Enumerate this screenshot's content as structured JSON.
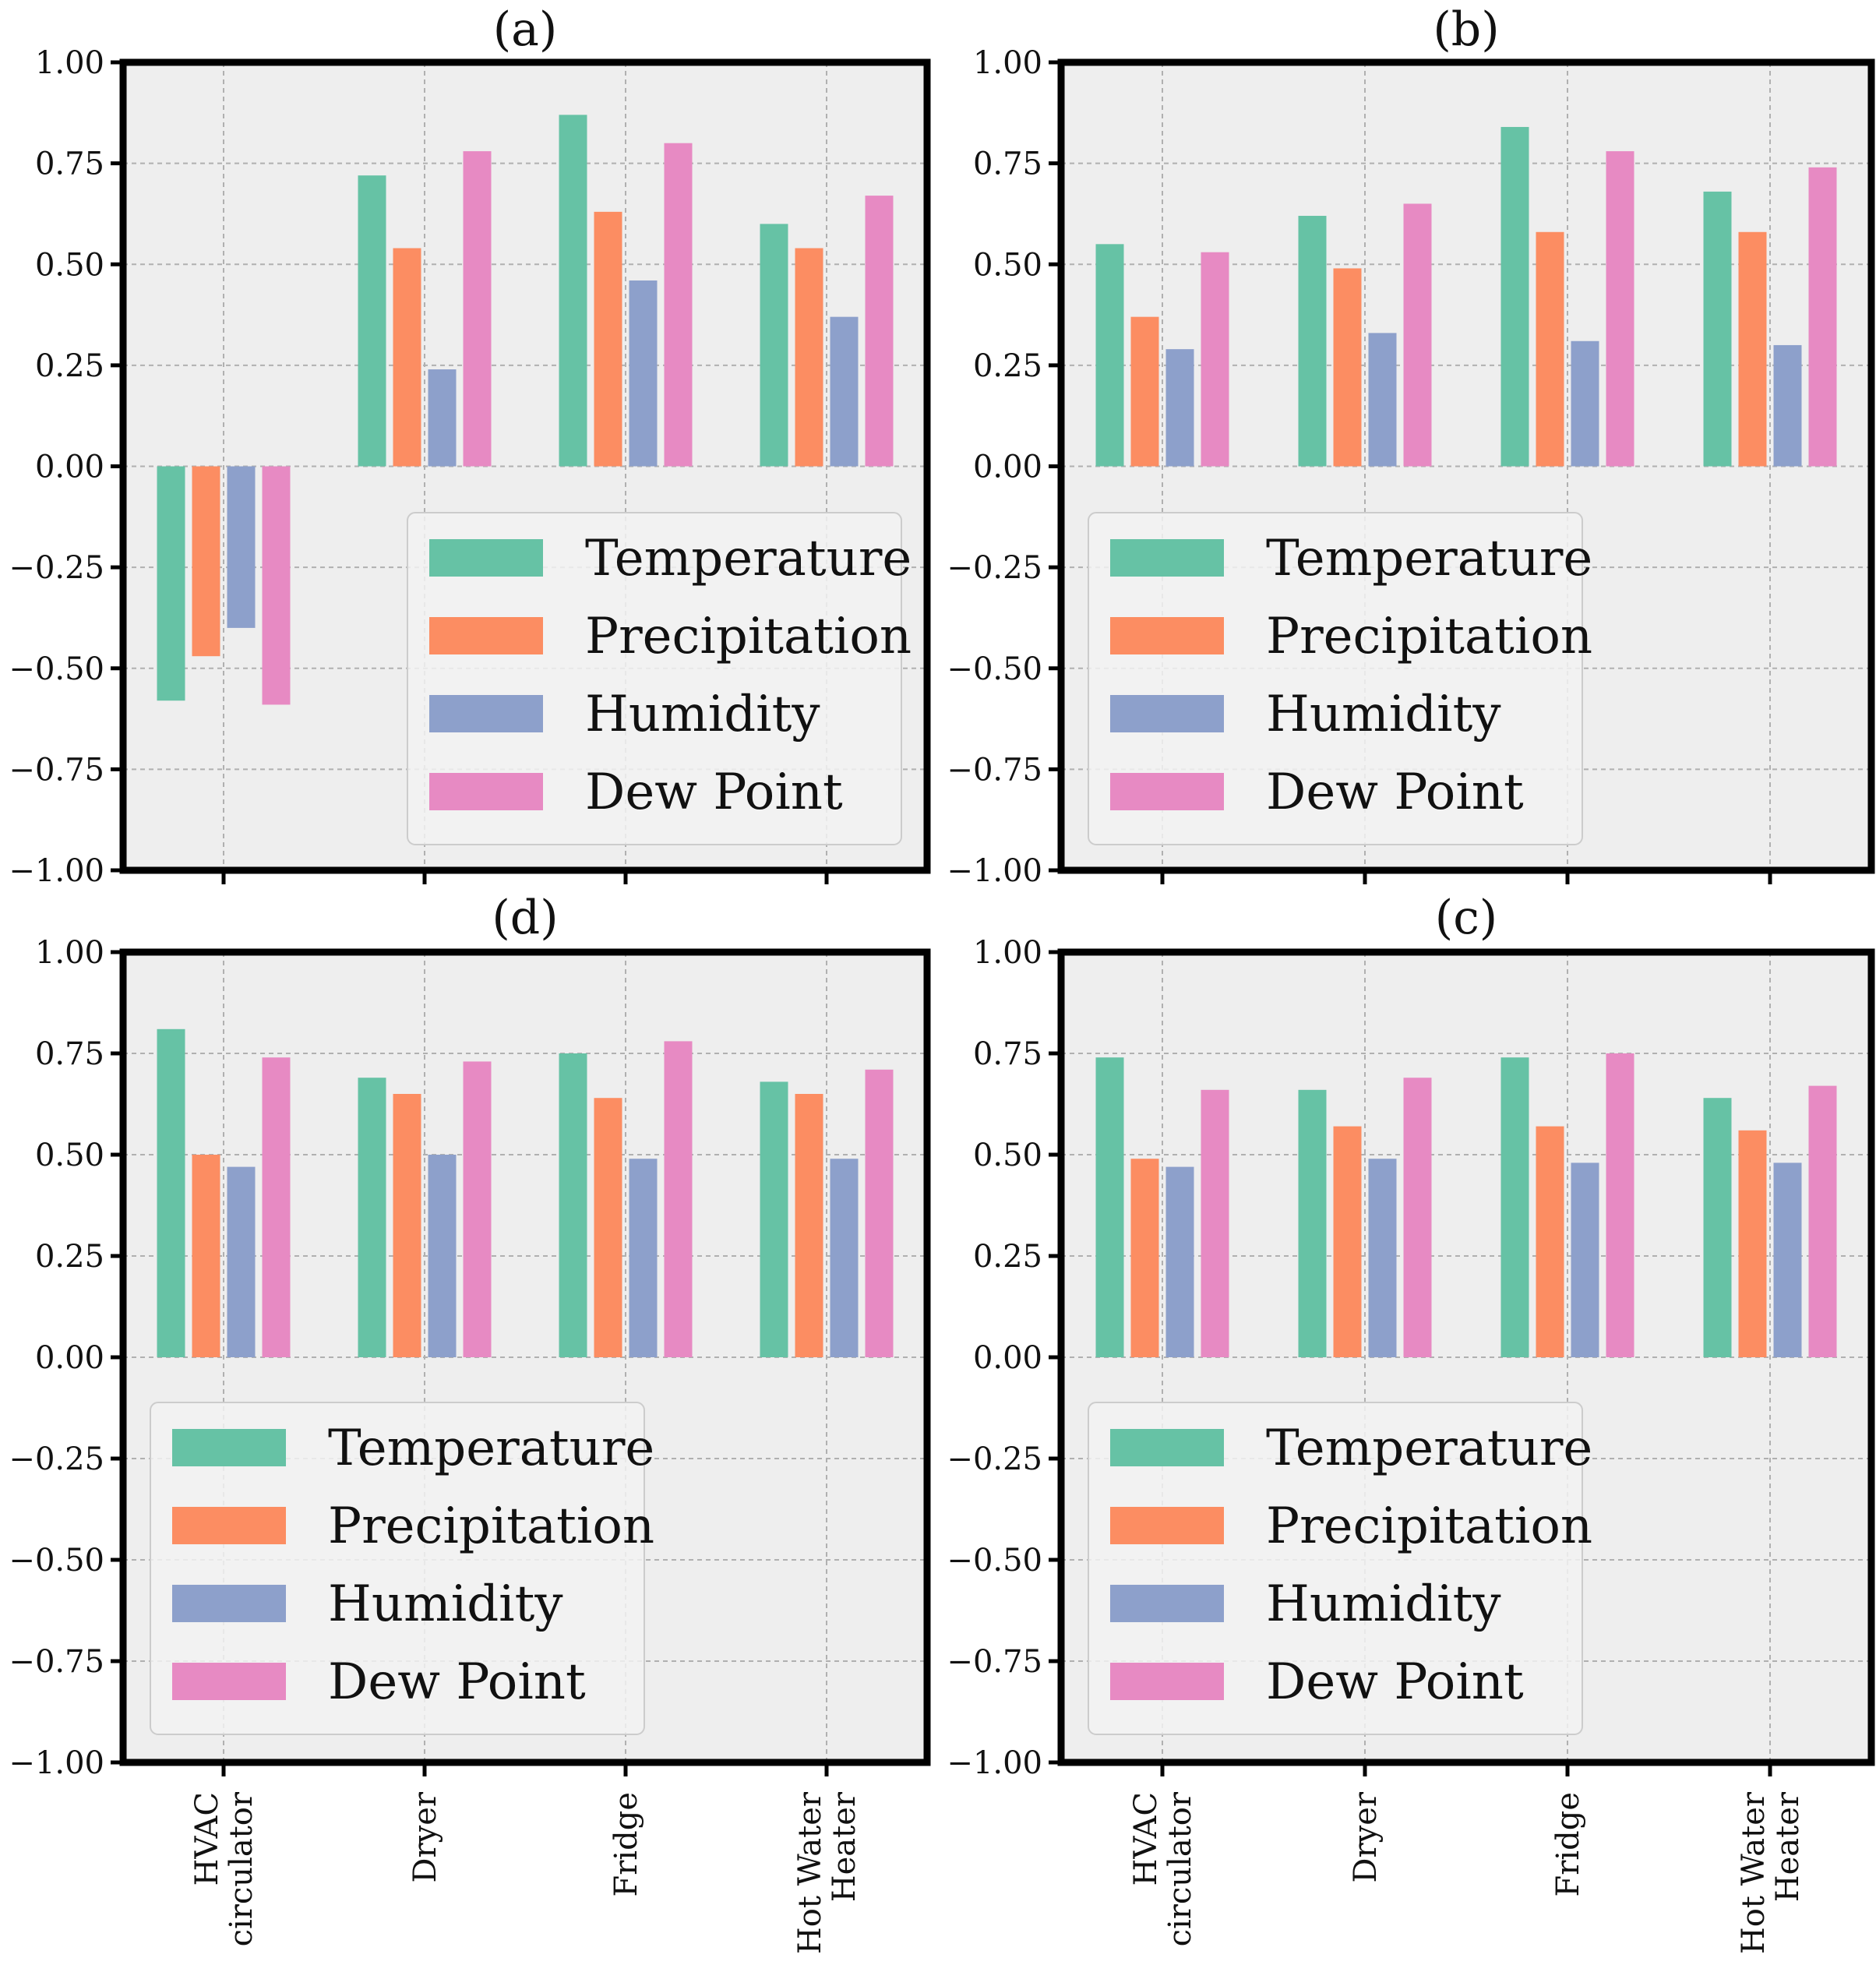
{
  "chart_data": [
    {
      "type": "bar",
      "title": "(a)",
      "categories": [
        "HVAC circulator",
        "Dryer",
        "Fridge",
        "Hot Water Heater"
      ],
      "series": [
        {
          "name": "Temperature",
          "values": [
            -0.58,
            0.72,
            0.87,
            0.6
          ]
        },
        {
          "name": "Precipitation",
          "values": [
            -0.47,
            0.54,
            0.63,
            0.54
          ]
        },
        {
          "name": "Humidity",
          "values": [
            -0.4,
            0.24,
            0.46,
            0.37
          ]
        },
        {
          "name": "Dew Point",
          "values": [
            -0.59,
            0.78,
            0.8,
            0.67
          ]
        }
      ],
      "ylim": [
        -1.0,
        1.0
      ],
      "yticks": [
        "1.00",
        "0.75",
        "0.50",
        "0.25",
        "0.00",
        "−0.25",
        "−0.50",
        "−0.75",
        "−1.00"
      ],
      "grid": true,
      "legend": "lower-right"
    },
    {
      "type": "bar",
      "title": "(b)",
      "categories": [
        "HVAC circulator",
        "Dryer",
        "Fridge",
        "Hot Water Heater"
      ],
      "series": [
        {
          "name": "Temperature",
          "values": [
            0.55,
            0.62,
            0.84,
            0.68
          ]
        },
        {
          "name": "Precipitation",
          "values": [
            0.37,
            0.49,
            0.58,
            0.58
          ]
        },
        {
          "name": "Humidity",
          "values": [
            0.29,
            0.33,
            0.31,
            0.3
          ]
        },
        {
          "name": "Dew Point",
          "values": [
            0.53,
            0.65,
            0.78,
            0.74
          ]
        }
      ],
      "ylim": [
        -1.0,
        1.0
      ],
      "yticks": [
        "1.00",
        "0.75",
        "0.50",
        "0.25",
        "0.00",
        "−0.25",
        "−0.50",
        "−0.75",
        "−1.00"
      ],
      "grid": true,
      "legend": "lower-left"
    },
    {
      "type": "bar",
      "title": "(d)",
      "categories": [
        "HVAC circulator",
        "Dryer",
        "Fridge",
        "Hot Water Heater"
      ],
      "series": [
        {
          "name": "Temperature",
          "values": [
            0.81,
            0.69,
            0.75,
            0.68
          ]
        },
        {
          "name": "Precipitation",
          "values": [
            0.5,
            0.65,
            0.64,
            0.65
          ]
        },
        {
          "name": "Humidity",
          "values": [
            0.47,
            0.5,
            0.49,
            0.49
          ]
        },
        {
          "name": "Dew Point",
          "values": [
            0.74,
            0.73,
            0.78,
            0.71
          ]
        }
      ],
      "ylim": [
        -1.0,
        1.0
      ],
      "yticks": [
        "1.00",
        "0.75",
        "0.50",
        "0.25",
        "0.00",
        "−0.25",
        "−0.50",
        "−0.75",
        "−1.00"
      ],
      "grid": true,
      "legend": "lower-left"
    },
    {
      "type": "bar",
      "title": "(c)",
      "categories": [
        "HVAC circulator",
        "Dryer",
        "Fridge",
        "Hot Water Heater"
      ],
      "series": [
        {
          "name": "Temperature",
          "values": [
            0.74,
            0.66,
            0.74,
            0.64
          ]
        },
        {
          "name": "Precipitation",
          "values": [
            0.49,
            0.57,
            0.57,
            0.56
          ]
        },
        {
          "name": "Humidity",
          "values": [
            0.47,
            0.49,
            0.48,
            0.48
          ]
        },
        {
          "name": "Dew Point",
          "values": [
            0.66,
            0.69,
            0.75,
            0.67
          ]
        }
      ],
      "ylim": [
        -1.0,
        1.0
      ],
      "yticks": [
        "1.00",
        "0.75",
        "0.50",
        "0.25",
        "0.00",
        "−0.25",
        "−0.50",
        "−0.75",
        "−1.00"
      ],
      "grid": true,
      "legend": "lower-left"
    }
  ],
  "x_tick_labels": [
    [
      "HVAC",
      "circulator"
    ],
    [
      "Dryer"
    ],
    [
      "Fridge"
    ],
    [
      "Hot Water",
      "Heater"
    ]
  ],
  "colors": {
    "Temperature": "#66c2a5",
    "Precipitation": "#fc8d62",
    "Humidity": "#8da0cb",
    "Dew Point": "#e78ac3",
    "panel_background": "#eeeeee",
    "grid": "#b0b0b0",
    "legend_background": "#f2f2f2",
    "legend_border": "#cccccc",
    "spine": "#000000"
  }
}
